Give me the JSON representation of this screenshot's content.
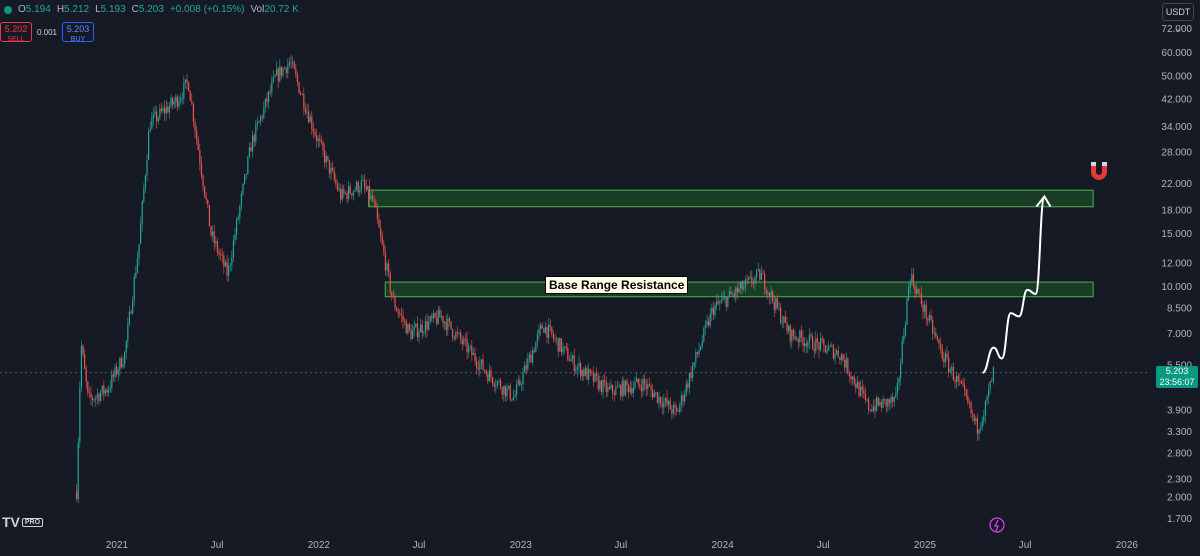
{
  "header": {
    "open_label": "O",
    "open": "5.194",
    "high_label": "H",
    "high": "5.212",
    "low_label": "L",
    "low": "5.193",
    "close_label": "C",
    "close": "5.203",
    "change": "+0.008 (+0.15%)",
    "vol_label": "Vol",
    "vol": "20.72 K"
  },
  "trade": {
    "sell_price": "5.202",
    "sell_label": "SELL",
    "spread": "0.001",
    "buy_price": "5.203",
    "buy_label": "BUY"
  },
  "currency": "USDT",
  "annotation": "Base Range Resistance",
  "current_price": {
    "price": "5.203",
    "countdown": "23:56:07"
  },
  "logo": {
    "mark": "TV",
    "badge": "PRO"
  },
  "icons": {
    "magnet": "magnet-icon",
    "flash": "flash-icon",
    "chevron": "chevron-down-icon"
  },
  "colors": {
    "background": "#161a25",
    "up": "#26a69a",
    "down": "#ef5350",
    "zone_fill": "#1e5a2a",
    "zone_border": "#4caf50"
  },
  "chart_data": {
    "type": "candlestick",
    "y_scale": "log",
    "y_ticks": [
      "72.000",
      "60.000",
      "50.000",
      "42.000",
      "34.000",
      "28.000",
      "22.000",
      "18.000",
      "15.000",
      "12.000",
      "10.000",
      "8.500",
      "7.000",
      "5.500",
      "3.900",
      "3.300",
      "2.800",
      "2.300",
      "2.000",
      "1.700"
    ],
    "x_ticks": [
      "2021",
      "Jul",
      "2022",
      "Jul",
      "2023",
      "Jul",
      "2024",
      "Jul",
      "2025",
      "Jul",
      "2026"
    ],
    "zones": [
      {
        "name": "upper-resistance",
        "low": 18.5,
        "high": 21.0,
        "start": "2022-04",
        "end": "2025-11"
      },
      {
        "name": "base-range-resistance",
        "low": 9.3,
        "high": 10.4,
        "start": "2022-05",
        "end": "2025-11"
      }
    ],
    "projection": [
      {
        "t": "2025-04-15",
        "p": 5.2
      },
      {
        "t": "2025-05-05",
        "p": 6.3
      },
      {
        "t": "2025-05-20",
        "p": 5.8
      },
      {
        "t": "2025-06-05",
        "p": 8.2
      },
      {
        "t": "2025-06-20",
        "p": 8.0
      },
      {
        "t": "2025-07-05",
        "p": 9.8
      },
      {
        "t": "2025-07-20",
        "p": 9.5
      },
      {
        "t": "2025-08-05",
        "p": 20.0
      }
    ],
    "price_path": [
      {
        "t": "2020-10-20",
        "p": 2.1
      },
      {
        "t": "2020-10-28",
        "p": 6.5
      },
      {
        "t": "2020-11-10",
        "p": 4.2
      },
      {
        "t": "2020-12-15",
        "p": 4.6
      },
      {
        "t": "2021-01-15",
        "p": 6.0
      },
      {
        "t": "2021-02-10",
        "p": 14.0
      },
      {
        "t": "2021-03-01",
        "p": 35.0
      },
      {
        "t": "2021-04-20",
        "p": 42.0
      },
      {
        "t": "2021-05-10",
        "p": 48.0
      },
      {
        "t": "2021-06-20",
        "p": 15.0
      },
      {
        "t": "2021-07-20",
        "p": 11.0
      },
      {
        "t": "2021-09-01",
        "p": 30.0
      },
      {
        "t": "2021-10-15",
        "p": 50.0
      },
      {
        "t": "2021-11-10",
        "p": 56.0
      },
      {
        "t": "2022-01-01",
        "p": 30.0
      },
      {
        "t": "2022-02-10",
        "p": 20.0
      },
      {
        "t": "2022-03-20",
        "p": 22.0
      },
      {
        "t": "2022-04-10",
        "p": 19.0
      },
      {
        "t": "2022-05-15",
        "p": 9.0
      },
      {
        "t": "2022-06-15",
        "p": 7.0
      },
      {
        "t": "2022-08-10",
        "p": 8.0
      },
      {
        "t": "2022-11-01",
        "p": 5.2
      },
      {
        "t": "2022-12-20",
        "p": 4.3
      },
      {
        "t": "2023-02-10",
        "p": 7.5
      },
      {
        "t": "2023-04-10",
        "p": 5.5
      },
      {
        "t": "2023-06-10",
        "p": 4.5
      },
      {
        "t": "2023-08-10",
        "p": 4.8
      },
      {
        "t": "2023-10-10",
        "p": 3.8
      },
      {
        "t": "2023-12-15",
        "p": 8.5
      },
      {
        "t": "2024-03-10",
        "p": 11.0
      },
      {
        "t": "2024-05-01",
        "p": 7.0
      },
      {
        "t": "2024-08-01",
        "p": 6.0
      },
      {
        "t": "2024-09-20",
        "p": 4.0
      },
      {
        "t": "2024-11-10",
        "p": 4.2
      },
      {
        "t": "2024-12-05",
        "p": 11.0
      },
      {
        "t": "2025-02-01",
        "p": 6.0
      },
      {
        "t": "2025-03-10",
        "p": 4.5
      },
      {
        "t": "2025-04-05",
        "p": 3.4
      },
      {
        "t": "2025-04-20",
        "p": 4.0
      },
      {
        "t": "2025-05-05",
        "p": 5.203
      }
    ]
  }
}
